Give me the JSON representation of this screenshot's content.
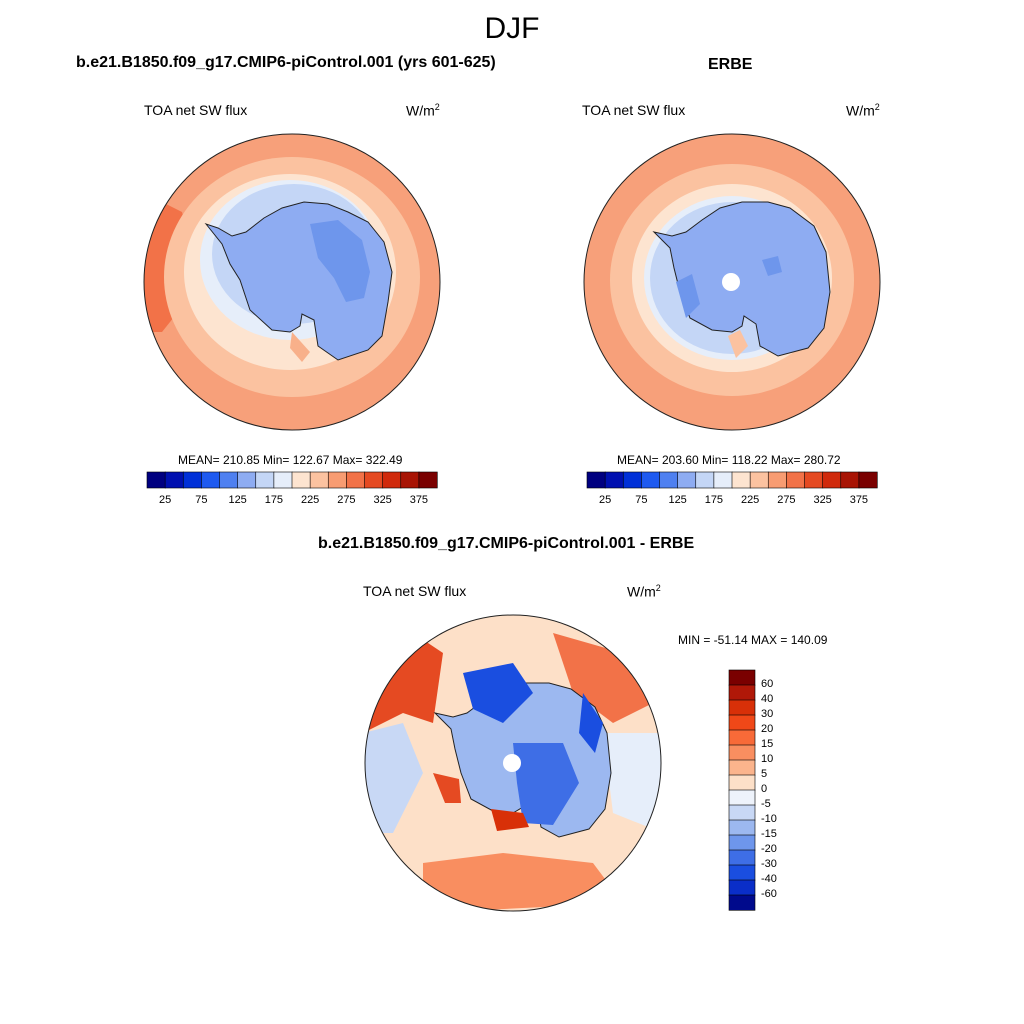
{
  "figure": {
    "season": "DJF"
  },
  "panels": [
    {
      "id": "model",
      "title": "b.e21.B1850.f09_g17.CMIP6-piControl.001 (yrs 601-625)",
      "variable": "TOA net SW flux",
      "units": "W/m",
      "units_sup": "2",
      "stats": "MEAN= 210.85  Min= 122.67  Max= 322.49"
    },
    {
      "id": "obs",
      "title": "ERBE",
      "variable": "TOA net SW flux",
      "units": "W/m",
      "units_sup": "2",
      "stats": "MEAN= 203.60  Min= 118.22  Max= 280.72"
    },
    {
      "id": "diff",
      "title": "b.e21.B1850.f09_g17.CMIP6-piControl.001 - ERBE",
      "variable": "TOA net SW flux",
      "units": "W/m",
      "units_sup": "2",
      "stats": "MIN = -51.14 MAX = 140.09"
    }
  ],
  "colorbar_abs": {
    "colors": [
      "#000080",
      "#0010b0",
      "#0030d8",
      "#1e5af0",
      "#4f80f0",
      "#8eacf2",
      "#c4d6f6",
      "#e6eefa",
      "#fde4d0",
      "#fbc2a0",
      "#f89c72",
      "#f27248",
      "#e54a22",
      "#d02a0c",
      "#a81404",
      "#7a0000"
    ],
    "labels": [
      "25",
      "75",
      "125",
      "175",
      "225",
      "275",
      "325",
      "375"
    ]
  },
  "colorbar_diff": {
    "colors": [
      "#7a0000",
      "#b01808",
      "#d83008",
      "#f04818",
      "#f86a38",
      "#f98e60",
      "#fbb48c",
      "#fde0c8",
      "#eef3fb",
      "#c8d8f5",
      "#9cb8f0",
      "#6e96ec",
      "#3e6ee6",
      "#1a4ee0",
      "#0a2ec8",
      "#000a8c"
    ],
    "labels": [
      "60",
      "40",
      "30",
      "20",
      "15",
      "10",
      "5",
      "0",
      "-5",
      "-10",
      "-15",
      "-20",
      "-30",
      "-40",
      "-60"
    ]
  },
  "map_colors": {
    "ocean_outer": "#f7a07a",
    "ocean_mid": "#fbc2a0",
    "ocean_inner": "#fde4d0",
    "ice_edge": "#c4d6f6",
    "continent": "#8eacf2",
    "continent_low": "#4f80f0",
    "diff_base": "#fde0c8",
    "diff_neg": "#3e6ee6",
    "diff_pos": "#e54a22"
  }
}
